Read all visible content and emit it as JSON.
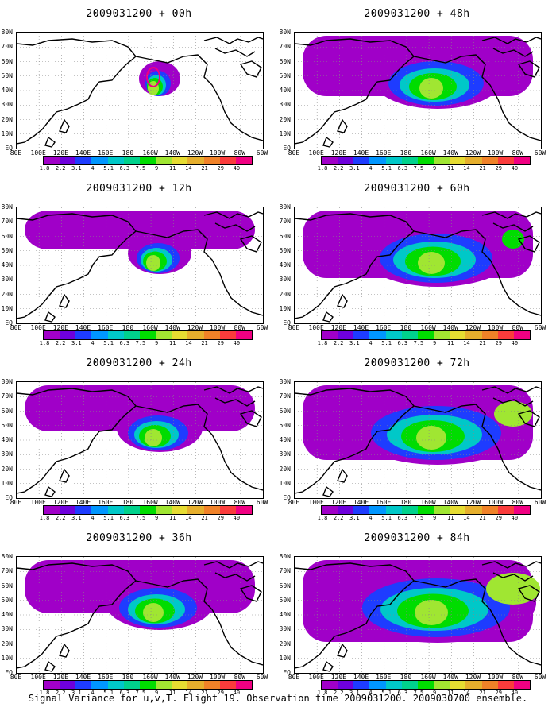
{
  "caption": "Signal Variance for u,v,T. Flight 19. Observation time 2009031200. 2009030700 ensemble.",
  "x_tick_labels": [
    "80E",
    "100E",
    "120E",
    "140E",
    "160E",
    "180",
    "160W",
    "140W",
    "120W",
    "100W",
    "80W",
    "60W"
  ],
  "y_tick_labels": [
    "80N",
    "70N",
    "60N",
    "50N",
    "40N",
    "30N",
    "20N",
    "10N",
    "EQ"
  ],
  "colorbar": {
    "colors": [
      "#a000c8",
      "#6e00dc",
      "#1e3cff",
      "#0096ff",
      "#00c8c8",
      "#00d28c",
      "#00dc00",
      "#a0e632",
      "#e6dc32",
      "#e6af2d",
      "#f08228",
      "#fa3c3c",
      "#f00082"
    ],
    "labels": [
      "1.8",
      "2.2",
      "3.1",
      "4",
      "5.1",
      "6.3",
      "7.5",
      "9",
      "11",
      "14",
      "21",
      "29",
      "40"
    ]
  },
  "panels": [
    {
      "title": "2009031200 + 00h",
      "level": 0
    },
    {
      "title": "2009031200 + 48h",
      "level": 4
    },
    {
      "title": "2009031200 + 12h",
      "level": 1
    },
    {
      "title": "2009031200 + 60h",
      "level": 5
    },
    {
      "title": "2009031200 + 24h",
      "level": 2
    },
    {
      "title": "2009031200 + 72h",
      "level": 6
    },
    {
      "title": "2009031200 + 36h",
      "level": 3
    },
    {
      "title": "2009031200 + 84h",
      "level": 7
    }
  ]
}
